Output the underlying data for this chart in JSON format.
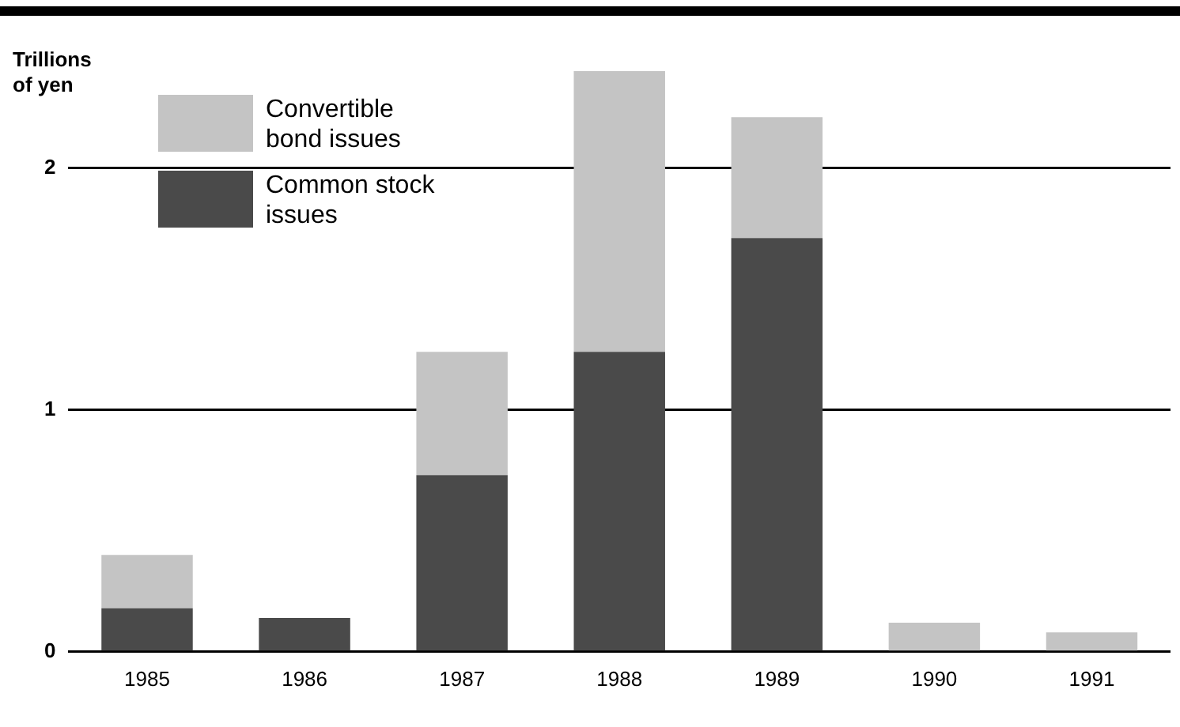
{
  "chart_data": {
    "type": "bar",
    "ylabel": "Trillions of yen",
    "categories": [
      "1985",
      "1986",
      "1987",
      "1988",
      "1989",
      "1990",
      "1991"
    ],
    "series": [
      {
        "name": "Common stock issues",
        "color": "#4a4a4a",
        "values": [
          0.18,
          0.14,
          0.73,
          1.24,
          1.71,
          0,
          0
        ]
      },
      {
        "name": "Convertible bond issues",
        "color": "#c4c4c4",
        "values": [
          0.22,
          0,
          0.51,
          1.16,
          0.5,
          0.12,
          0.08
        ]
      }
    ],
    "stacked": true,
    "ylim": [
      0,
      2.4
    ],
    "yticks": [
      0,
      1,
      2
    ],
    "grid": "y",
    "legend": "top left"
  }
}
